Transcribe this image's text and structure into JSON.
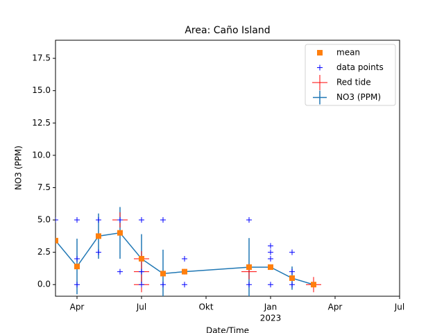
{
  "chart_data": {
    "type": "errorbar",
    "title": "Area: Caño Island",
    "xlabel": "Date/Time",
    "ylabel": "NO3 (PPM)",
    "xlim": [
      "2022-03",
      "2023-07"
    ],
    "ylim": [
      -0.9,
      18.9
    ],
    "xticks": [
      {
        "value": "2022-04",
        "label": "Apr"
      },
      {
        "value": "2022-07",
        "label": "Jul"
      },
      {
        "value": "2022-10",
        "label": "Okt"
      },
      {
        "value": "2023-01",
        "label": "Jan"
      },
      {
        "value": "2023-04",
        "label": "Apr"
      },
      {
        "value": "2023-07",
        "label": "Jul"
      }
    ],
    "x_year_label": {
      "value": "2023-01",
      "label": "2023"
    },
    "yticks": [
      {
        "value": 0,
        "label": "0.0"
      },
      2.5,
      {
        "value": 5,
        "label": "5.0"
      },
      7.5,
      {
        "value": 10,
        "label": "10.0"
      },
      12.5,
      {
        "value": 15,
        "label": "15.0"
      },
      17.5
    ],
    "legend": "upper right",
    "series": [
      {
        "name": "mean",
        "color": "#ff7f0e",
        "marker": "square",
        "x": [
          "2022-03",
          "2022-04",
          "2022-05",
          "2022-06",
          "2022-07",
          "2022-08",
          "2022-09",
          "2022-12",
          "2023-01",
          "2023-02",
          "2023-03"
        ],
        "values": [
          3.4,
          1.4,
          3.75,
          4.0,
          2.0,
          0.85,
          1.0,
          1.35,
          1.35,
          0.5,
          0.0
        ]
      },
      {
        "name": "data points",
        "color": "#0000ff",
        "marker": "plus",
        "x": [
          "2022-03",
          "2022-04",
          "2022-04",
          "2022-04",
          "2022-05",
          "2022-05",
          "2022-06",
          "2022-06",
          "2022-07",
          "2022-07",
          "2022-07",
          "2022-07",
          "2022-08",
          "2022-08",
          "2022-09",
          "2022-09",
          "2022-09",
          "2022-12",
          "2022-12",
          "2023-01",
          "2023-01",
          "2023-01",
          "2023-01",
          "2023-02",
          "2023-02",
          "2023-02",
          "2023-03"
        ],
        "values": [
          5.0,
          5.0,
          2.0,
          0.0,
          5.0,
          2.5,
          5.0,
          1.0,
          5.0,
          2.0,
          1.0,
          0.0,
          5.0,
          0.0,
          2.0,
          1.0,
          0.0,
          5.0,
          0.0,
          3.0,
          2.5,
          2.0,
          0.0,
          2.5,
          1.0,
          0.0,
          0.0
        ]
      },
      {
        "name": "Red tide",
        "color": "#ff0000",
        "marker": "plus-large",
        "x": [
          "2022-06",
          "2022-07",
          "2022-07",
          "2022-07",
          "2022-12",
          "2023-03"
        ],
        "values": [
          5.0,
          2.0,
          1.0,
          0.0,
          1.0,
          0.0
        ]
      },
      {
        "name": "NO3 (PPM)",
        "color": "#1f77b4",
        "marker": "line",
        "x": [
          "2022-03",
          "2022-04",
          "2022-05",
          "2022-06",
          "2022-07",
          "2022-08",
          "2022-09",
          "2022-12",
          "2023-01",
          "2023-02",
          "2023-03"
        ],
        "values": [
          3.4,
          1.4,
          3.75,
          4.0,
          2.0,
          0.85,
          1.0,
          1.35,
          1.35,
          0.5,
          0.0
        ],
        "errors": [
          0,
          2.15,
          1.75,
          2.0,
          1.9,
          1.85,
          0.15,
          2.25,
          0.1,
          0.9,
          0.2
        ]
      }
    ]
  }
}
